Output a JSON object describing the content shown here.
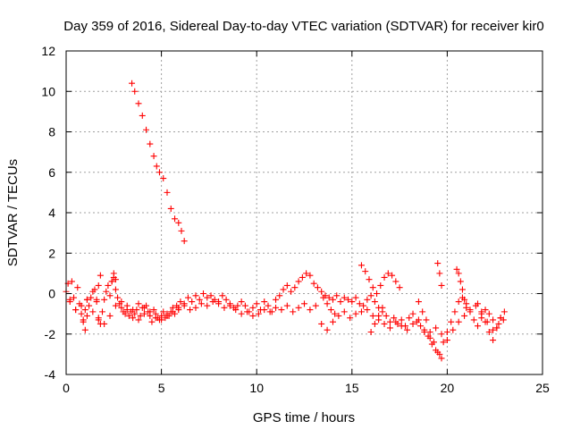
{
  "chart_data": {
    "type": "scatter",
    "title": "Day 359 of 2016, Sidereal Day-to-day VTEC variation (SDTVAR) for receiver kir0",
    "xlabel": "GPS time / hours",
    "ylabel": "SDTVAR / TECUs",
    "xlim": [
      0,
      25
    ],
    "ylim": [
      -4,
      12
    ],
    "xticks": [
      0,
      5,
      10,
      15,
      20,
      25
    ],
    "yticks": [
      -4,
      -2,
      0,
      2,
      4,
      6,
      8,
      10,
      12
    ],
    "grid": true,
    "marker": "plus",
    "color": "#ff0000",
    "series": [
      {
        "name": "SDTVAR",
        "x": [
          3.45,
          3.6,
          3.8,
          4.0,
          4.2,
          4.4,
          4.6,
          4.75,
          4.9,
          5.1,
          5.3,
          5.5,
          5.7,
          5.9,
          6.05,
          6.2,
          0.0,
          0.1,
          0.2,
          0.3,
          0.4,
          0.5,
          0.6,
          0.7,
          0.8,
          0.9,
          1.0,
          1.1,
          1.2,
          1.3,
          1.4,
          1.5,
          1.6,
          1.7,
          1.8,
          1.9,
          2.0,
          2.1,
          2.2,
          2.3,
          2.4,
          2.5,
          2.6,
          2.7,
          2.8,
          2.9,
          3.0,
          3.1,
          3.2,
          3.3,
          3.4,
          3.5,
          3.6,
          3.7,
          3.8,
          3.9,
          4.0,
          4.1,
          4.2,
          4.3,
          4.4,
          4.5,
          4.6,
          4.7,
          4.8,
          4.9,
          5.0,
          5.1,
          5.2,
          5.3,
          5.4,
          5.5,
          5.6,
          5.7,
          5.8,
          5.9,
          6.0,
          6.2,
          6.4,
          6.6,
          6.8,
          7.0,
          7.2,
          7.4,
          7.6,
          7.8,
          8.0,
          8.2,
          8.4,
          8.6,
          8.8,
          9.0,
          9.2,
          9.4,
          9.6,
          9.8,
          10.0,
          10.2,
          10.4,
          10.6,
          10.8,
          11.0,
          11.2,
          11.4,
          11.6,
          11.8,
          12.0,
          12.2,
          12.4,
          12.6,
          12.8,
          13.0,
          13.2,
          13.4,
          13.6,
          13.8,
          14.0,
          14.2,
          14.4,
          14.6,
          14.8,
          15.0,
          15.2,
          15.4,
          15.6,
          15.8,
          16.0,
          16.2,
          16.4,
          16.6,
          16.8,
          17.0,
          17.2,
          17.4,
          17.6,
          17.8,
          18.0,
          18.2,
          18.4,
          18.6,
          18.8,
          19.0,
          19.2,
          19.4,
          19.6,
          19.8,
          20.0,
          20.2,
          20.4,
          20.6,
          20.8,
          21.0,
          21.2,
          21.4,
          21.6,
          21.8,
          22.0,
          22.2,
          22.4,
          22.6,
          22.8,
          23.0,
          0.2,
          0.5,
          0.8,
          1.1,
          1.4,
          1.7,
          2.0,
          2.3,
          2.6,
          2.9,
          3.2,
          3.5,
          3.8,
          4.1,
          4.4,
          4.7,
          5.0,
          5.3,
          5.6,
          5.9,
          6.2,
          6.5,
          6.8,
          7.1,
          7.4,
          7.7,
          8.0,
          8.3,
          8.6,
          8.9,
          9.2,
          9.5,
          9.8,
          10.1,
          10.4,
          10.7,
          11.0,
          11.3,
          11.6,
          11.9,
          12.2,
          12.5,
          12.8,
          13.1,
          13.4,
          13.7,
          14.0,
          14.3,
          14.6,
          14.9,
          15.2,
          15.5,
          15.8,
          16.1,
          16.4,
          16.7,
          17.0,
          17.3,
          17.6,
          17.9,
          18.2,
          18.5,
          18.8,
          19.1,
          19.4,
          19.7,
          20.0,
          20.3,
          20.6,
          20.9,
          21.2,
          21.5,
          21.8,
          22.1,
          22.4,
          22.7,
          22.95,
          15.5,
          15.7,
          15.9,
          16.1,
          16.3,
          16.5,
          16.7,
          16.9,
          17.1,
          17.3,
          17.5,
          19.5,
          19.6,
          19.7,
          20.5,
          20.6,
          20.7,
          20.8,
          20.9,
          21.0,
          18.5,
          18.7,
          18.9,
          19.1,
          19.3,
          19.5,
          19.7,
          21.6,
          21.8,
          22.0,
          22.2,
          22.4,
          22.6,
          22.8,
          0.9,
          1.0,
          1.1,
          1.6,
          1.7,
          1.8,
          2.4,
          2.5,
          2.6,
          13.5,
          13.7,
          13.9,
          14.1,
          16.0,
          16.2,
          16.4,
          16.6
        ],
        "y": [
          10.4,
          10.0,
          9.4,
          8.8,
          8.1,
          7.4,
          6.8,
          6.3,
          6.0,
          5.7,
          5.0,
          4.2,
          3.7,
          3.5,
          3.1,
          2.6,
          0.1,
          0.5,
          -0.3,
          0.6,
          -0.2,
          -0.8,
          0.3,
          -0.5,
          -1.0,
          -1.3,
          -0.8,
          -0.3,
          -0.6,
          -0.2,
          0.1,
          0.2,
          -0.4,
          -1.2,
          -1.5,
          -0.9,
          -0.3,
          0.1,
          0.4,
          -0.1,
          0.6,
          0.8,
          0.2,
          -0.2,
          -0.5,
          -0.7,
          -0.9,
          -1.0,
          -0.8,
          -1.1,
          -0.9,
          -1.2,
          -1.0,
          -0.8,
          -1.3,
          -1.1,
          -0.7,
          -1.0,
          -0.6,
          -0.9,
          -1.1,
          -1.4,
          -0.8,
          -1.0,
          -1.2,
          -1.3,
          -1.1,
          -0.9,
          -1.2,
          -1.0,
          -1.1,
          -0.9,
          -0.7,
          -1.0,
          -0.6,
          -0.8,
          -0.4,
          -0.5,
          -0.2,
          -0.4,
          -0.1,
          -0.3,
          0.0,
          -0.2,
          -0.1,
          -0.3,
          -0.4,
          -0.1,
          -0.3,
          -0.5,
          -0.7,
          -0.6,
          -0.4,
          -0.6,
          -0.9,
          -0.7,
          -0.5,
          -0.8,
          -0.4,
          -0.6,
          -0.9,
          -0.3,
          -0.1,
          0.2,
          0.4,
          0.1,
          0.3,
          0.6,
          0.8,
          1.0,
          0.9,
          0.5,
          0.3,
          0.1,
          -0.1,
          -0.2,
          -0.3,
          -0.1,
          -0.4,
          -0.2,
          -0.3,
          -0.4,
          -0.2,
          -0.5,
          -0.6,
          -0.3,
          -0.1,
          -0.4,
          -0.7,
          -0.9,
          -1.1,
          -1.4,
          -1.2,
          -1.5,
          -1.3,
          -1.6,
          -1.2,
          -1.0,
          -1.4,
          -1.6,
          -1.8,
          -2.1,
          -2.5,
          -2.8,
          -3.0,
          -2.4,
          -1.9,
          -1.4,
          -0.9,
          -0.4,
          -0.2,
          -0.5,
          -0.9,
          -1.3,
          -1.6,
          -1.2,
          -0.8,
          -1.0,
          -1.3,
          -1.7,
          -1.2,
          -0.9,
          -0.4,
          -0.8,
          -0.6,
          -0.3,
          -0.9,
          -1.3,
          -1.5,
          -1.1,
          -0.6,
          -0.4,
          -0.6,
          -0.8,
          -0.5,
          -0.7,
          -0.9,
          -1.2,
          -1.3,
          -1.1,
          -0.9,
          -0.7,
          -0.6,
          -0.8,
          -0.7,
          -0.5,
          -0.6,
          -0.4,
          -0.5,
          -0.7,
          -0.6,
          -0.8,
          -1.0,
          -0.9,
          -1.1,
          -1.0,
          -0.8,
          -0.9,
          -0.7,
          -0.8,
          -0.6,
          -0.9,
          -0.7,
          -0.5,
          -0.8,
          -0.6,
          -1.5,
          -1.8,
          -1.4,
          -1.1,
          -0.9,
          -1.2,
          -1.0,
          -0.9,
          -0.8,
          -1.1,
          -1.3,
          -1.5,
          -1.7,
          -1.4,
          -1.6,
          -1.8,
          -1.5,
          -1.3,
          -1.9,
          -2.2,
          -1.7,
          -2.0,
          -2.3,
          -1.8,
          -1.4,
          -1.1,
          -0.8,
          -0.6,
          -1.0,
          -1.4,
          -1.8,
          -1.5,
          -1.3,
          1.4,
          1.1,
          0.7,
          0.3,
          0.0,
          0.4,
          0.8,
          1.0,
          0.9,
          0.6,
          0.3,
          1.5,
          1.0,
          0.4,
          1.2,
          1.0,
          0.6,
          0.2,
          -0.3,
          -0.7,
          -0.4,
          -0.9,
          -1.3,
          -1.9,
          -2.4,
          -2.9,
          -3.2,
          -0.5,
          -0.9,
          -1.4,
          -1.9,
          -2.3,
          -1.7,
          -1.2,
          -1.4,
          -1.8,
          -1.1,
          -0.3,
          0.4,
          0.9,
          0.6,
          1.0,
          0.7,
          -0.2,
          -0.5,
          -0.8,
          -1.0,
          -1.9,
          -1.5,
          -1.1,
          -0.7
        ]
      }
    ]
  }
}
